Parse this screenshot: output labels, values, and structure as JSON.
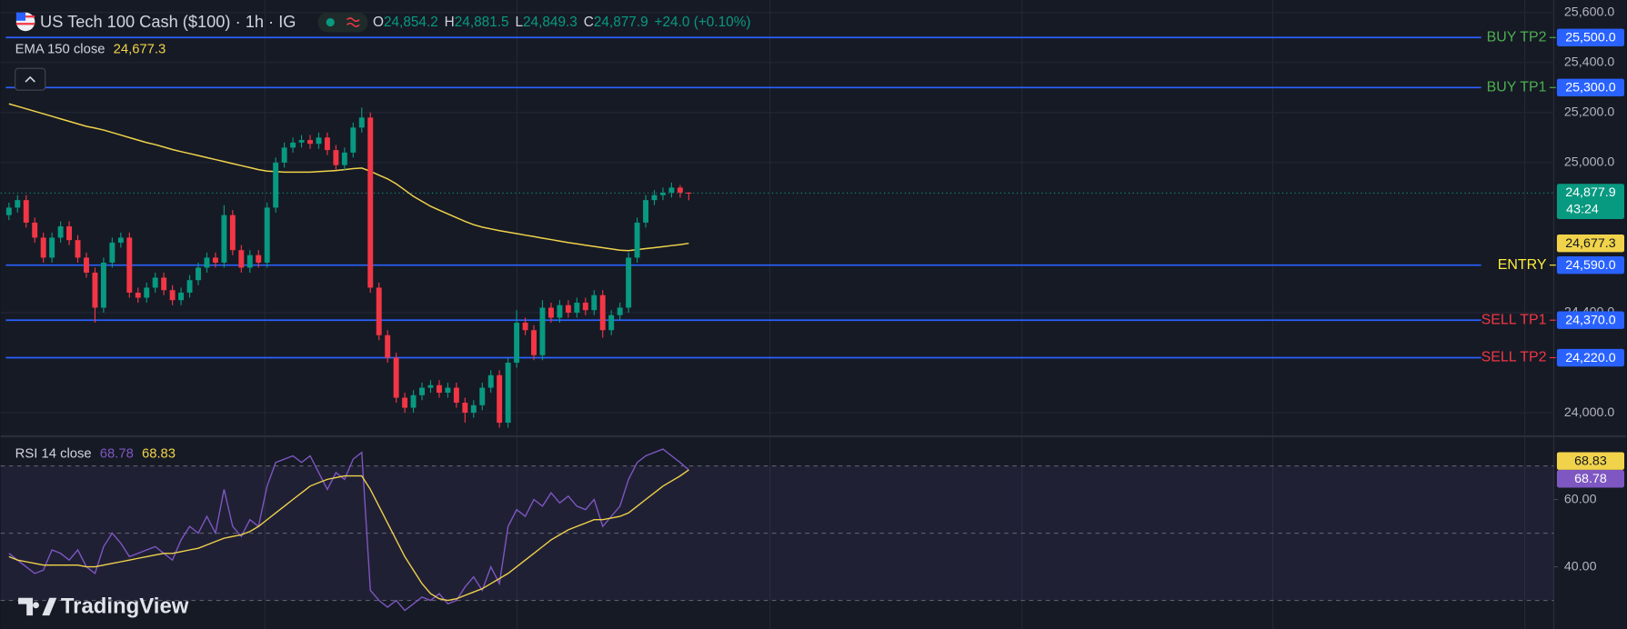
{
  "chart_data": {
    "type": "candlestick",
    "title": "US Tech 100 Cash ($100) · 1h · IG",
    "ohlc": [
      {
        "key": "O",
        "value": "24,854.2"
      },
      {
        "key": "H",
        "value": "24,881.5"
      },
      {
        "key": "L",
        "value": "24,849.3"
      },
      {
        "key": "C",
        "value": "24,877.9"
      }
    ],
    "change": "+24.0 (+0.10%)",
    "up_color": "#089981",
    "down_color": "#f23645",
    "ylim": [
      23910,
      25650
    ],
    "yticks": [
      {
        "value": 25600,
        "label": "25,600.0"
      },
      {
        "value": 25400,
        "label": "25,400.0"
      },
      {
        "value": 25200,
        "label": "25,200.0"
      },
      {
        "value": 25000,
        "label": "25,000.0"
      },
      {
        "value": 24400,
        "label": "24,400.0"
      },
      {
        "value": 24000,
        "label": "24,000.0"
      }
    ],
    "grid": true,
    "candles": {
      "open": [
        24790,
        24820,
        24850,
        24760,
        24700,
        24620,
        24700,
        24745,
        24690,
        24620,
        24560,
        24420,
        24600,
        24680,
        24700,
        24480,
        24460,
        24500,
        24540,
        24490,
        24450,
        24480,
        24530,
        24580,
        24620,
        24600,
        24790,
        24650,
        24580,
        24630,
        24600,
        24820,
        25000,
        25060,
        25080,
        25090,
        25075,
        25100,
        25050,
        24990,
        25040,
        25140,
        25180,
        24500,
        24310,
        24220,
        24060,
        24020,
        24070,
        24100,
        24110,
        24080,
        24100,
        24040,
        24000,
        24030,
        24100,
        24150,
        23960,
        24200,
        24360,
        24330,
        24230,
        24420,
        24380,
        24430,
        24400,
        24440,
        24410,
        24470,
        24330,
        24390,
        24420,
        24620,
        24760,
        24850,
        24870,
        24880,
        24900,
        24880
      ],
      "high": [
        24840,
        24870,
        24870,
        24780,
        24720,
        24720,
        24765,
        24765,
        24710,
        24640,
        24580,
        24620,
        24700,
        24720,
        24720,
        24500,
        24520,
        24560,
        24560,
        24510,
        24500,
        24550,
        24600,
        24640,
        24640,
        24830,
        24810,
        24670,
        24650,
        24650,
        24840,
        25020,
        25080,
        25100,
        25110,
        25110,
        25120,
        25120,
        25070,
        25060,
        25160,
        25220,
        25200,
        24520,
        24330,
        24240,
        24080,
        24090,
        24120,
        24130,
        24130,
        24120,
        24120,
        24060,
        24050,
        24120,
        24170,
        24170,
        24220,
        24410,
        24380,
        24350,
        24450,
        24440,
        24450,
        24450,
        24460,
        24460,
        24490,
        24490,
        24410,
        24440,
        24640,
        24780,
        24870,
        24890,
        24900,
        24920,
        24910,
        24881.5
      ],
      "low": [
        24770,
        24800,
        24740,
        24680,
        24600,
        24600,
        24680,
        24670,
        24600,
        24540,
        24360,
        24400,
        24580,
        24660,
        24460,
        24440,
        24440,
        24480,
        24470,
        24430,
        24430,
        24460,
        24510,
        24560,
        24580,
        24580,
        24630,
        24560,
        24560,
        24580,
        24580,
        24800,
        24980,
        25040,
        25060,
        25055,
        25055,
        25030,
        24970,
        24970,
        25020,
        25120,
        24480,
        24290,
        24200,
        24040,
        24000,
        24000,
        24050,
        24080,
        24060,
        24060,
        24020,
        23960,
        23980,
        24010,
        24080,
        23940,
        23940,
        24180,
        24310,
        24210,
        24210,
        24360,
        24360,
        24380,
        24380,
        24390,
        24390,
        24300,
        24310,
        24370,
        24400,
        24600,
        24740,
        24830,
        24850,
        24860,
        24860,
        24849.3
      ],
      "close": [
        24820,
        24850,
        24760,
        24700,
        24620,
        24700,
        24745,
        24690,
        24620,
        24560,
        24420,
        24600,
        24680,
        24700,
        24480,
        24460,
        24500,
        24540,
        24490,
        24450,
        24480,
        24530,
        24580,
        24620,
        24600,
        24790,
        24650,
        24580,
        24630,
        24600,
        24820,
        25000,
        25060,
        25080,
        25090,
        25075,
        25100,
        25050,
        24990,
        25040,
        25140,
        25180,
        24500,
        24310,
        24220,
        24060,
        24020,
        24070,
        24100,
        24110,
        24080,
        24100,
        24040,
        24000,
        24030,
        24100,
        24150,
        23960,
        24200,
        24360,
        24330,
        24230,
        24420,
        24380,
        24430,
        24400,
        24440,
        24410,
        24470,
        24330,
        24390,
        24420,
        24620,
        24760,
        24850,
        24870,
        24880,
        24900,
        24880,
        24877.9
      ]
    },
    "last_price": {
      "value": 24877.9,
      "label": "24,877.9",
      "countdown": "43:24",
      "color": "#089981"
    },
    "ema": {
      "name": "EMA 150 close",
      "last_label": "24,677.3",
      "color": "#f0d34a",
      "values": [
        25235,
        25225,
        25215,
        25205,
        25195,
        25185,
        25175,
        25165,
        25155,
        25145,
        25138,
        25130,
        25120,
        25110,
        25100,
        25090,
        25080,
        25072,
        25062,
        25052,
        25044,
        25036,
        25028,
        25020,
        25012,
        25004,
        24996,
        24988,
        24980,
        24972,
        24966,
        24964,
        24962,
        24962,
        24962,
        24962,
        24964,
        24966,
        24968,
        24972,
        24976,
        24978,
        24965,
        24950,
        24935,
        24915,
        24890,
        24865,
        24845,
        24825,
        24810,
        24795,
        24780,
        24765,
        24752,
        24742,
        24735,
        24728,
        24722,
        24716,
        24710,
        24704,
        24698,
        24692,
        24686,
        24680,
        24675,
        24670,
        24665,
        24660,
        24655,
        24650,
        24648,
        24652,
        24656,
        24660,
        24664,
        24668,
        24672,
        24677.3
      ]
    },
    "levels": [
      {
        "name": "BUY TP2",
        "value": 25500,
        "label": "25,500.0",
        "color": "#4caf50"
      },
      {
        "name": "BUY TP1",
        "value": 25300,
        "label": "25,300.0",
        "color": "#4caf50"
      },
      {
        "name": "ENTRY",
        "value": 24590,
        "label": "24,590.0",
        "color": "#ffeb3b"
      },
      {
        "name": "SELL TP1",
        "value": 24370,
        "label": "24,370.0",
        "color": "#f23645"
      },
      {
        "name": "SELL TP2",
        "value": 24220,
        "label": "24,220.0",
        "color": "#f23645"
      }
    ],
    "level_line_color": "#2962ff",
    "rsi": {
      "title": "RSI 14 close",
      "ylim": [
        21.5,
        78.5
      ],
      "yticks": [
        {
          "value": 60,
          "label": "60.00"
        },
        {
          "value": 40,
          "label": "40.00"
        }
      ],
      "levels": [
        70,
        50,
        30
      ],
      "lines": [
        {
          "color": "#7e57c2",
          "last_label": "68.78",
          "values": [
            44,
            42,
            40,
            38,
            39,
            45,
            44,
            42,
            45,
            40,
            38,
            46,
            50,
            47,
            43,
            44,
            45,
            46,
            44,
            42,
            48,
            52,
            50,
            55,
            50,
            63,
            52,
            49,
            54,
            52,
            64,
            71,
            72,
            73,
            71,
            73,
            68,
            63,
            68,
            66,
            72,
            74,
            33,
            30,
            28,
            30,
            27,
            29,
            31,
            30,
            32,
            29,
            30,
            34,
            37,
            33,
            40,
            35,
            52,
            57,
            55,
            60,
            58,
            62,
            59,
            61,
            58,
            57,
            60,
            52,
            55,
            58,
            66,
            71,
            73,
            74,
            75,
            73,
            71,
            68.78
          ]
        },
        {
          "color": "#f0d34a",
          "last_label": "68.83",
          "values": [
            43,
            42,
            41.5,
            41,
            40.5,
            40.5,
            40.5,
            40.5,
            40.5,
            40,
            40,
            40.5,
            41,
            41.5,
            42,
            42.5,
            43,
            43.5,
            44,
            44,
            44.5,
            45,
            45.5,
            46.5,
            47.5,
            48.5,
            49,
            49.5,
            50.5,
            52,
            54,
            56,
            58,
            60,
            62,
            64,
            65,
            66,
            66.5,
            67,
            67,
            67,
            63,
            58,
            53,
            48,
            43,
            39,
            35,
            32,
            30.5,
            30,
            30.5,
            31.5,
            32.5,
            33.5,
            35,
            36.5,
            38,
            40,
            42,
            44,
            46,
            48,
            49.5,
            51,
            52,
            53,
            54,
            54,
            54.5,
            55,
            56,
            58,
            60,
            62,
            64,
            65.5,
            67,
            68.83
          ]
        }
      ]
    },
    "logo": "TradingView"
  }
}
